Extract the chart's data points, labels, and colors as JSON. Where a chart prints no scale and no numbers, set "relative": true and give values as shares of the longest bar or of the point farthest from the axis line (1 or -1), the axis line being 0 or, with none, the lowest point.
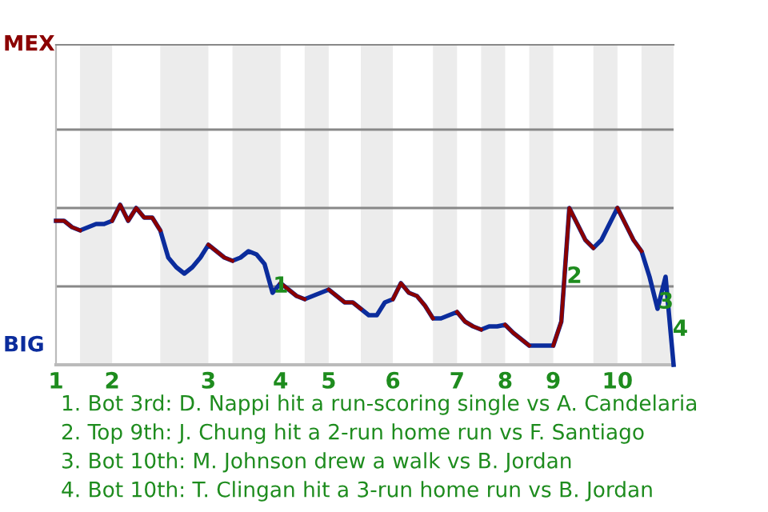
{
  "chart_data": {
    "type": "line",
    "relative": true,
    "categories": [
      "1",
      null,
      null,
      null,
      null,
      null,
      null,
      "2",
      null,
      null,
      null,
      null,
      null,
      null,
      null,
      null,
      null,
      null,
      null,
      "3",
      null,
      null,
      null,
      null,
      null,
      null,
      null,
      null,
      "4",
      null,
      null,
      null,
      null,
      null,
      "5",
      null,
      null,
      null,
      null,
      null,
      null,
      null,
      "6",
      null,
      null,
      null,
      null,
      null,
      null,
      null,
      "7",
      null,
      null,
      null,
      null,
      null,
      "8",
      null,
      null,
      null,
      null,
      null,
      "9",
      null,
      null,
      null,
      null,
      null,
      null,
      null,
      "10",
      null,
      null,
      null,
      null,
      null,
      null,
      null
    ],
    "series": [
      {
        "color": "#8b0000",
        "values": [
          0.9,
          0.9,
          0.86,
          0.84,
          null,
          null,
          null,
          0.9,
          1,
          0.9,
          0.98,
          0.92,
          0.92,
          0.84,
          null,
          null,
          null,
          null,
          null,
          0.75,
          0.71,
          0.67,
          0.65,
          null,
          null,
          null,
          null,
          null,
          0.51,
          0.47,
          0.43,
          0.41,
          null,
          null,
          0.47,
          0.43,
          0.39,
          0.39,
          0.35,
          null,
          null,
          null,
          0.41,
          0.51,
          0.45,
          0.43,
          0.37,
          0.29,
          null,
          null,
          0.33,
          0.27,
          0.24,
          0.22,
          null,
          null,
          0.25,
          0.2,
          0.16,
          0.12,
          null,
          null,
          0.12,
          0.27,
          0.98,
          0.88,
          0.78,
          0.73,
          null,
          null,
          0.98,
          0.88,
          0.78,
          0.71,
          null,
          null,
          null,
          null
        ]
      },
      {
        "color": "#0b2c9c",
        "values": [
          0.9,
          0.9,
          0.86,
          0.84,
          0.86,
          0.88,
          0.88,
          0.9,
          1,
          0.9,
          0.98,
          0.92,
          0.92,
          0.84,
          0.67,
          0.61,
          0.57,
          0.61,
          0.67,
          0.75,
          0.71,
          0.67,
          0.65,
          0.67,
          0.71,
          0.69,
          0.63,
          0.45,
          0.51,
          0.47,
          0.43,
          0.41,
          0.43,
          0.45,
          0.47,
          0.43,
          0.39,
          0.39,
          0.35,
          0.31,
          0.31,
          0.39,
          0.41,
          0.51,
          0.45,
          0.43,
          0.37,
          0.29,
          0.29,
          0.31,
          0.33,
          0.27,
          0.24,
          0.22,
          0.24,
          0.24,
          0.25,
          0.2,
          0.16,
          0.12,
          0.12,
          0.12,
          0.12,
          0.27,
          0.98,
          0.88,
          0.78,
          0.73,
          0.78,
          0.88,
          0.98,
          0.88,
          0.78,
          0.71,
          0.55,
          0.35,
          0.55,
          0
        ]
      }
    ],
    "ref_lines": [
      {
        "axis": "y",
        "value": 0.49,
        "color": "#888888"
      },
      {
        "axis": "y",
        "value": 0.98,
        "color": "#888888"
      },
      {
        "axis": "y",
        "value": 1.47,
        "color": "#888888"
      }
    ],
    "marker": "none",
    "line_style": "solid",
    "annotations": [
      {
        "text": "1",
        "y": 0.49
      },
      {
        "text": "2",
        "y": 0.55
      },
      {
        "text": "3",
        "y": 0.39
      },
      {
        "text": "4",
        "y": 0.22
      },
      "MEX",
      "BIG",
      "1. Bot 3rd: D. Nappi hit a run-scoring single vs A. Candelaria",
      "2. Top 9th: J. Chung hit a 2-run home run vs F. Santiago",
      "3. Bot 10th: M. Johnson drew a walk vs B. Jordan",
      "4. Bot 10th: T. Clingan hit a 3-run home run vs B. Jordan"
    ]
  }
}
